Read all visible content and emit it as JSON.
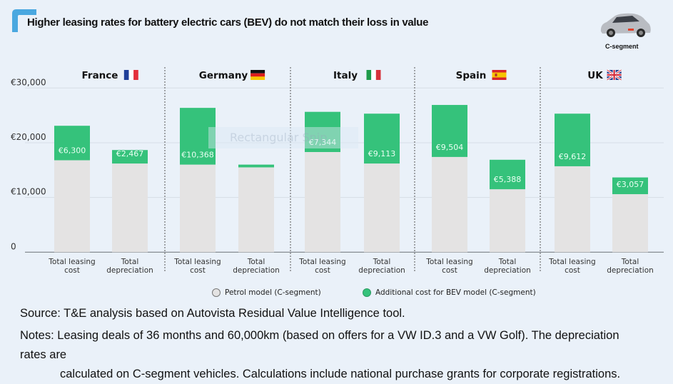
{
  "header": {
    "title": "Higher leasing rates for battery electric cars (BEV) do not match their loss in value",
    "car_label": "C-segment",
    "accent_color": "#4aa8e0"
  },
  "overlay_text": "Rectangular Snip",
  "chart_data": {
    "type": "bar",
    "stacked": true,
    "title": "Higher leasing rates for battery electric cars (BEV) do not match their loss in value",
    "ylim": [
      0,
      30000
    ],
    "yticks": [
      0,
      10000,
      20000,
      30000
    ],
    "ytick_labels": [
      "0",
      "€10,000",
      "€20,000",
      "€30,000"
    ],
    "grid": true,
    "legend_position": "bottom",
    "groups": [
      {
        "country": "France",
        "flag": "france-flag-icon"
      },
      {
        "country": "Germany",
        "flag": "germany-flag-icon"
      },
      {
        "country": "Italy",
        "flag": "italy-flag-icon"
      },
      {
        "country": "Spain",
        "flag": "spain-flag-icon"
      },
      {
        "country": "UK",
        "flag": "uk-flag-icon"
      }
    ],
    "categories": [
      "Total leasing cost",
      "Total depreciation"
    ],
    "category_lines": [
      [
        "Total leasing",
        "cost"
      ],
      [
        "Total",
        "depreciation"
      ]
    ],
    "series": [
      {
        "name": "Petrol model (C-segment)",
        "color": "#e4e3e3",
        "values": [
          [
            16800,
            16200
          ],
          [
            16000,
            15500
          ],
          [
            18300,
            16200
          ],
          [
            17400,
            11500
          ],
          [
            15700,
            10600
          ]
        ]
      },
      {
        "name": "Additional cost for BEV model (C-segment)",
        "color": "#35c27b",
        "values": [
          [
            6300,
            2467
          ],
          [
            10368,
            500
          ],
          [
            7344,
            9113
          ],
          [
            9504,
            5388
          ],
          [
            9612,
            3057
          ]
        ],
        "labels": [
          [
            "€6,300",
            "€2,467"
          ],
          [
            "€10,368",
            ""
          ],
          [
            "€7,344",
            "€9,113"
          ],
          [
            "€9,504",
            "€5,388"
          ],
          [
            "€9,612",
            "€3,057"
          ]
        ]
      }
    ]
  },
  "legend": {
    "petrol": "Petrol model (C-segment)",
    "bev": "Additional cost for BEV model (C-segment)"
  },
  "footer": {
    "source": "Source: T&E analysis based on Autovista Residual Value Intelligence tool.",
    "notes_line1": "Notes: Leasing deals of 36 months and 60,000km (based on offers for a VW ID.3 and a VW Golf). The depreciation rates are",
    "notes_line2": "calculated on C-segment vehicles. Calculations include national purchase grants for corporate registrations."
  }
}
